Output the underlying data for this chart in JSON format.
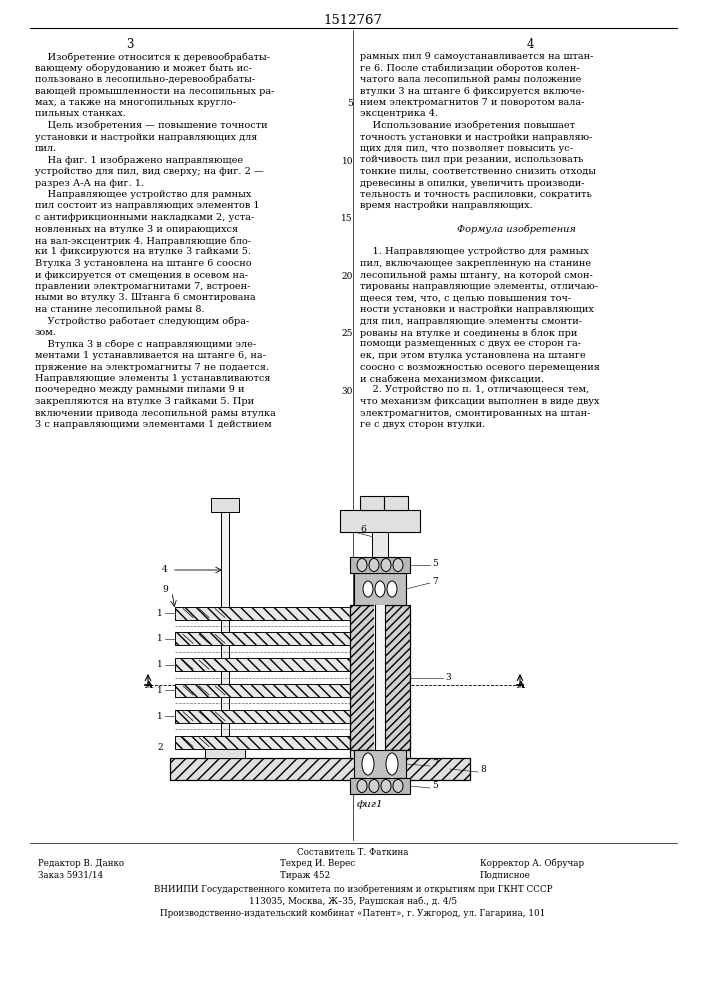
{
  "bg_color": "#ffffff",
  "page_number_center": "1512767",
  "col_left_num": "3",
  "col_right_num": "4",
  "col_left_text": [
    "    Изобретение относится к деревообрабаты-",
    "вающему оборудованию и может быть ис-",
    "пользовано в лесопильно-деревообрабаты-",
    "вающей промышленности на лесопильных ра-",
    "мах, а также на многопильных кругло-",
    "пильных станках.",
    "    Цель изобретения — повышение точности",
    "установки и настройки направляющих для",
    "пил.",
    "    На фиг. 1 изображено направляющее",
    "устройство для пил, вид сверху; на фиг. 2 —",
    "разрез А-А на фиг. 1.",
    "    Направляющее устройство для рамных",
    "пил состоит из направляющих элементов 1",
    "с антифрикционными накладками 2, уста-",
    "новленных на втулке 3 и опирающихся",
    "на вал-эксцентрик 4. Направляющие бло-",
    "ки 1 фиксируются на втулке 3 гайками 5.",
    "Втулка 3 установлена на штанге 6 соосно",
    "и фиксируется от смещения в осевом на-",
    "правлении электромагнитами 7, встроен-",
    "ными во втулку 3. Штанга 6 смонтирована",
    "на станине лесопильной рамы 8.",
    "    Устройство работает следующим обра-",
    "зом.",
    "    Втулка 3 в сборе с направляющими эле-",
    "ментами 1 устанавливается на штанге 6, на-",
    "пряжение на электромагниты 7 не подается.",
    "Направляющие элементы 1 устанавливаются",
    "поочередно между рамными пилами 9 и",
    "закрепляются на втулке 3 гайками 5. При",
    "включении привода лесопильной рамы втулка",
    "3 с направляющими элементами 1 действием"
  ],
  "col_right_text": [
    "рамных пил 9 самоустанавливается на штан-",
    "ге 6. После стабилизации оборотов колен-",
    "чатого вала лесопильной рамы положение",
    "втулки 3 на штанге 6 фиксируется включе-",
    "нием электромагнитов 7 и поворотом вала-",
    "эксцентрика 4.",
    "    Использование изобретения повышает",
    "точность установки и настройки направляю-",
    "щих для пил, что позволяет повысить ус-",
    "тойчивость пил при резании, использовать",
    "тонкие пилы, соответственно снизить отходы",
    "древесины в опилки, увеличить производи-",
    "тельность и точность распиловки, сократить",
    "время настройки направляющих.",
    "",
    "Формула изобретения",
    "",
    "    1. Направляющее устройство для рамных",
    "пил, включающее закрепленную на станине",
    "лесопильной рамы штангу, на которой смон-",
    "тированы направляющие элементы, отличаю-",
    "щееся тем, что, с целью повышения точ-",
    "ности установки и настройки направляющих",
    "для пил, направляющие элементы смонти-",
    "рованы на втулке и соединены в блок при",
    "помощи размещенных с двух ее сторон га-",
    "ек, при этом втулка установлена на штанге",
    "соосно с возможностью осевого перемещения",
    "и снабжена механизмом фиксации.",
    "    2. Устройство по п. 1, отличающееся тем,",
    "что механизм фиксации выполнен в виде двух",
    "электромагнитов, смонтированных на штан-",
    "ге с двух сторон втулки."
  ],
  "line_numbers_right": [
    "5",
    "10",
    "15",
    "20",
    "25",
    "30"
  ],
  "footer_line1_left": "Редактор В. Данко",
  "footer_line1_center": "Составитель Т. Фаткина",
  "footer_line2_left": "Заказ 5931/14",
  "footer_line2_center": "Техред И. Верес",
  "footer_line2_right": "Корректор А. Обручар",
  "footer_line3_center": "Тираж 452",
  "footer_line3_right": "Подписное",
  "footer_org1": "ВНИИПИ Государственного комитета по изобретениям и открытиям при ГКНТ СССР",
  "footer_org2": "113035, Москва, Ж–35, Раушская наб., д. 4/5",
  "footer_org3": "Производственно-издательский комбинат «Патент», г. Ужгород, ул. Гагарина, 101",
  "fig_caption": "фиг1",
  "text_fontsize": 7.0,
  "footer_fontsize": 6.3,
  "title_fontsize": 9.5,
  "linenum_fontsize": 6.5
}
